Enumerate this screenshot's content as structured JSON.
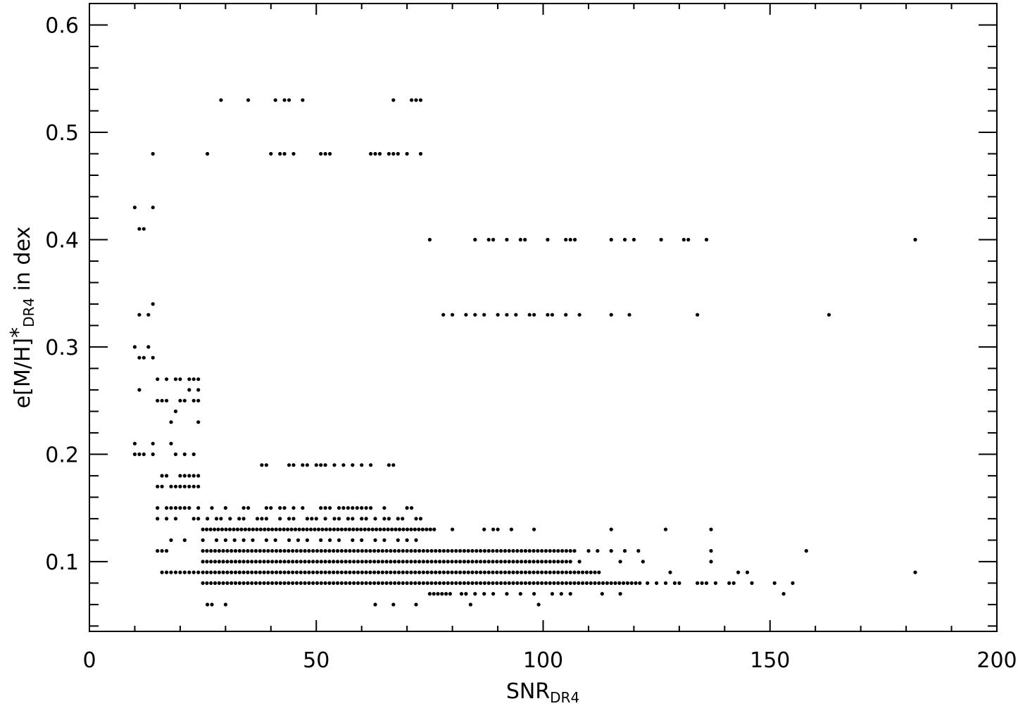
{
  "chart_data": {
    "type": "scatter",
    "title": "",
    "xlabel": {
      "main": "SNR",
      "subscript": "DR4"
    },
    "ylabel": {
      "prefix": "e[M/H]",
      "star": "*",
      "subscript": "DR4",
      "suffix": " in dex"
    },
    "xlim": [
      0,
      200
    ],
    "ylim": [
      0.035,
      0.62
    ],
    "xticks": [
      0,
      50,
      100,
      150,
      200
    ],
    "xtick_labels": [
      "0",
      "50",
      "100",
      "150",
      "200"
    ],
    "yticks": [
      0.1,
      0.2,
      0.3,
      0.4,
      0.5,
      0.6
    ],
    "ytick_labels": [
      "0.1",
      "0.2",
      "0.3",
      "0.4",
      "0.5",
      "0.6"
    ],
    "x_minor_step": 10,
    "y_minor_step": 0.02,
    "grid": false,
    "marker": {
      "shape": "circle",
      "color": "#000000"
    },
    "series": [
      {
        "points": [
          [
            29,
            0.53
          ],
          [
            35,
            0.53
          ],
          [
            41,
            0.53
          ],
          [
            43,
            0.53
          ],
          [
            44,
            0.53
          ],
          [
            47,
            0.53
          ],
          [
            67,
            0.53
          ],
          [
            71,
            0.53
          ],
          [
            72,
            0.53
          ],
          [
            73,
            0.53
          ],
          [
            14,
            0.48
          ],
          [
            26,
            0.48
          ],
          [
            40,
            0.48
          ],
          [
            42,
            0.48
          ],
          [
            43,
            0.48
          ],
          [
            45,
            0.48
          ],
          [
            51,
            0.48
          ],
          [
            52,
            0.48
          ],
          [
            53,
            0.48
          ],
          [
            62,
            0.48
          ],
          [
            63,
            0.48
          ],
          [
            64,
            0.48
          ],
          [
            66,
            0.48
          ],
          [
            67,
            0.48
          ],
          [
            68,
            0.48
          ],
          [
            70,
            0.48
          ],
          [
            73,
            0.48
          ],
          [
            10,
            0.43
          ],
          [
            14,
            0.43
          ],
          [
            11,
            0.41
          ],
          [
            12,
            0.41
          ],
          [
            75,
            0.4
          ],
          [
            85,
            0.4
          ],
          [
            88,
            0.4
          ],
          [
            89,
            0.4
          ],
          [
            92,
            0.4
          ],
          [
            95,
            0.4
          ],
          [
            96,
            0.4
          ],
          [
            101,
            0.4
          ],
          [
            105,
            0.4
          ],
          [
            106,
            0.4
          ],
          [
            107,
            0.4
          ],
          [
            115,
            0.4
          ],
          [
            118,
            0.4
          ],
          [
            120,
            0.4
          ],
          [
            126,
            0.4
          ],
          [
            131,
            0.4
          ],
          [
            132,
            0.4
          ],
          [
            136,
            0.4
          ],
          [
            182,
            0.4
          ],
          [
            14,
            0.34
          ],
          [
            11,
            0.33
          ],
          [
            13,
            0.33
          ],
          [
            78,
            0.33
          ],
          [
            80,
            0.33
          ],
          [
            83,
            0.33
          ],
          [
            85,
            0.33
          ],
          [
            87,
            0.33
          ],
          [
            90,
            0.33
          ],
          [
            92,
            0.33
          ],
          [
            94,
            0.33
          ],
          [
            97,
            0.33
          ],
          [
            98,
            0.33
          ],
          [
            101,
            0.33
          ],
          [
            102,
            0.33
          ],
          [
            105,
            0.33
          ],
          [
            108,
            0.33
          ],
          [
            115,
            0.33
          ],
          [
            119,
            0.33
          ],
          [
            134,
            0.33
          ],
          [
            163,
            0.33
          ],
          [
            10,
            0.3
          ],
          [
            13,
            0.3
          ],
          [
            11,
            0.29
          ],
          [
            12,
            0.29
          ],
          [
            14,
            0.29
          ],
          [
            15,
            0.27
          ],
          [
            17,
            0.27
          ],
          [
            19,
            0.27
          ],
          [
            20,
            0.27
          ],
          [
            22,
            0.27
          ],
          [
            23,
            0.27
          ],
          [
            24,
            0.27
          ],
          [
            11,
            0.26
          ],
          [
            22,
            0.26
          ],
          [
            24,
            0.26
          ],
          [
            15,
            0.25
          ],
          [
            16,
            0.25
          ],
          [
            17,
            0.25
          ],
          [
            20,
            0.25
          ],
          [
            21,
            0.25
          ],
          [
            23,
            0.25
          ],
          [
            24,
            0.25
          ],
          [
            19,
            0.24
          ],
          [
            18,
            0.23
          ],
          [
            24,
            0.23
          ],
          [
            10,
            0.21
          ],
          [
            14,
            0.21
          ],
          [
            18,
            0.21
          ],
          [
            10,
            0.2
          ],
          [
            11,
            0.2
          ],
          [
            12,
            0.2
          ],
          [
            14,
            0.2
          ],
          [
            19,
            0.2
          ],
          [
            21,
            0.2
          ],
          [
            23,
            0.2
          ],
          [
            38,
            0.19
          ],
          [
            39,
            0.19
          ],
          [
            44,
            0.19
          ],
          [
            45,
            0.19
          ],
          [
            47,
            0.19
          ],
          [
            48,
            0.19
          ],
          [
            50,
            0.19
          ],
          [
            51,
            0.19
          ],
          [
            52,
            0.19
          ],
          [
            54,
            0.19
          ],
          [
            56,
            0.19
          ],
          [
            58,
            0.19
          ],
          [
            60,
            0.19
          ],
          [
            62,
            0.19
          ],
          [
            66,
            0.19
          ],
          [
            67,
            0.19
          ],
          [
            16,
            0.18
          ],
          [
            17,
            0.18
          ],
          [
            20,
            0.18
          ],
          [
            21,
            0.18
          ],
          [
            22,
            0.18
          ],
          [
            23,
            0.18
          ],
          [
            24,
            0.18
          ],
          [
            15,
            0.17
          ],
          [
            16,
            0.17
          ],
          [
            18,
            0.17
          ],
          [
            19,
            0.17
          ],
          [
            20,
            0.17
          ],
          [
            21,
            0.17
          ],
          [
            22,
            0.17
          ],
          [
            23,
            0.17
          ],
          [
            24,
            0.17
          ],
          [
            15,
            0.15
          ],
          [
            17,
            0.15
          ],
          [
            18,
            0.15
          ],
          [
            19,
            0.15
          ],
          [
            20,
            0.15
          ],
          [
            21,
            0.15
          ],
          [
            22,
            0.15
          ],
          [
            24,
            0.15
          ],
          [
            27,
            0.15
          ],
          [
            30,
            0.15
          ],
          [
            34,
            0.15
          ],
          [
            35,
            0.15
          ],
          [
            39,
            0.15
          ],
          [
            40,
            0.15
          ],
          [
            42,
            0.15
          ],
          [
            43,
            0.15
          ],
          [
            45,
            0.15
          ],
          [
            47,
            0.15
          ],
          [
            51,
            0.15
          ],
          [
            52,
            0.15
          ],
          [
            53,
            0.15
          ],
          [
            55,
            0.15
          ],
          [
            56,
            0.15
          ],
          [
            57,
            0.15
          ],
          [
            58,
            0.15
          ],
          [
            59,
            0.15
          ],
          [
            60,
            0.15
          ],
          [
            61,
            0.15
          ],
          [
            62,
            0.15
          ],
          [
            65,
            0.15
          ],
          [
            70,
            0.15
          ],
          [
            71,
            0.15
          ],
          [
            15,
            0.14
          ],
          [
            17,
            0.14
          ],
          [
            19,
            0.14
          ],
          [
            23,
            0.14
          ],
          [
            24,
            0.14
          ],
          [
            26,
            0.14
          ],
          [
            28,
            0.14
          ],
          [
            29,
            0.14
          ],
          [
            31,
            0.14
          ],
          [
            33,
            0.14
          ],
          [
            34,
            0.14
          ],
          [
            37,
            0.14
          ],
          [
            38,
            0.14
          ],
          [
            39,
            0.14
          ],
          [
            42,
            0.14
          ],
          [
            44,
            0.14
          ],
          [
            45,
            0.14
          ],
          [
            48,
            0.14
          ],
          [
            49,
            0.14
          ],
          [
            50,
            0.14
          ],
          [
            52,
            0.14
          ],
          [
            54,
            0.14
          ],
          [
            55,
            0.14
          ],
          [
            57,
            0.14
          ],
          [
            58,
            0.14
          ],
          [
            60,
            0.14
          ],
          [
            61,
            0.14
          ],
          [
            63,
            0.14
          ],
          [
            65,
            0.14
          ],
          [
            66,
            0.14
          ],
          [
            68,
            0.14
          ],
          [
            69,
            0.14
          ],
          [
            72,
            0.14
          ],
          [
            73,
            0.14
          ],
          [
            80,
            0.13
          ],
          [
            87,
            0.13
          ],
          [
            89,
            0.13
          ],
          [
            90,
            0.13
          ],
          [
            93,
            0.13
          ],
          [
            98,
            0.13
          ],
          [
            115,
            0.13
          ],
          [
            127,
            0.13
          ],
          [
            137,
            0.13
          ],
          [
            18,
            0.12
          ],
          [
            21,
            0.12
          ],
          [
            25,
            0.12
          ],
          [
            28,
            0.12
          ],
          [
            30,
            0.12
          ],
          [
            32,
            0.12
          ],
          [
            34,
            0.12
          ],
          [
            36,
            0.12
          ],
          [
            39,
            0.12
          ],
          [
            41,
            0.12
          ],
          [
            44,
            0.12
          ],
          [
            46,
            0.12
          ],
          [
            48,
            0.12
          ],
          [
            51,
            0.12
          ],
          [
            53,
            0.12
          ],
          [
            55,
            0.12
          ],
          [
            58,
            0.12
          ],
          [
            60,
            0.12
          ],
          [
            63,
            0.12
          ],
          [
            65,
            0.12
          ],
          [
            68,
            0.12
          ],
          [
            70,
            0.12
          ],
          [
            72,
            0.12
          ],
          [
            15,
            0.11
          ],
          [
            16,
            0.11
          ],
          [
            17,
            0.11
          ],
          [
            158,
            0.11
          ],
          [
            137,
            0.11
          ],
          [
            110,
            0.11
          ],
          [
            112,
            0.11
          ],
          [
            115,
            0.11
          ],
          [
            118,
            0.11
          ],
          [
            121,
            0.11
          ],
          [
            108,
            0.1
          ],
          [
            117,
            0.1
          ],
          [
            122,
            0.1
          ],
          [
            137,
            0.1
          ],
          [
            16,
            0.09
          ],
          [
            17,
            0.09
          ],
          [
            18,
            0.09
          ],
          [
            19,
            0.09
          ],
          [
            20,
            0.09
          ],
          [
            21,
            0.09
          ],
          [
            22,
            0.09
          ],
          [
            23,
            0.09
          ],
          [
            24,
            0.09
          ],
          [
            128,
            0.09
          ],
          [
            143,
            0.09
          ],
          [
            145,
            0.09
          ],
          [
            182,
            0.09
          ],
          [
            123,
            0.08
          ],
          [
            125,
            0.08
          ],
          [
            127,
            0.08
          ],
          [
            129,
            0.08
          ],
          [
            130,
            0.08
          ],
          [
            134,
            0.08
          ],
          [
            135,
            0.08
          ],
          [
            136,
            0.08
          ],
          [
            138,
            0.08
          ],
          [
            141,
            0.08
          ],
          [
            142,
            0.08
          ],
          [
            146,
            0.08
          ],
          [
            151,
            0.08
          ],
          [
            155,
            0.08
          ],
          [
            82,
            0.07
          ],
          [
            83,
            0.07
          ],
          [
            85,
            0.07
          ],
          [
            87,
            0.07
          ],
          [
            89,
            0.07
          ],
          [
            92,
            0.07
          ],
          [
            95,
            0.07
          ],
          [
            98,
            0.07
          ],
          [
            102,
            0.07
          ],
          [
            104,
            0.07
          ],
          [
            106,
            0.07
          ],
          [
            113,
            0.07
          ],
          [
            117,
            0.07
          ],
          [
            153,
            0.07
          ],
          [
            26,
            0.06
          ],
          [
            27,
            0.06
          ],
          [
            30,
            0.06
          ],
          [
            63,
            0.06
          ],
          [
            67,
            0.06
          ],
          [
            72,
            0.06
          ],
          [
            84,
            0.06
          ],
          [
            99,
            0.06
          ]
        ],
        "dense_rows": [
          {
            "y": 0.13,
            "x_from": 25,
            "x_to": 76,
            "step": 0.85
          },
          {
            "y": 0.11,
            "x_from": 25,
            "x_to": 107,
            "step": 0.9
          },
          {
            "y": 0.1,
            "x_from": 25,
            "x_to": 106,
            "step": 0.9
          },
          {
            "y": 0.09,
            "x_from": 25,
            "x_to": 113,
            "step": 0.9
          },
          {
            "y": 0.08,
            "x_from": 25,
            "x_to": 122,
            "step": 0.9
          },
          {
            "y": 0.07,
            "x_from": 75,
            "x_to": 80,
            "step": 0.9
          }
        ]
      }
    ]
  }
}
